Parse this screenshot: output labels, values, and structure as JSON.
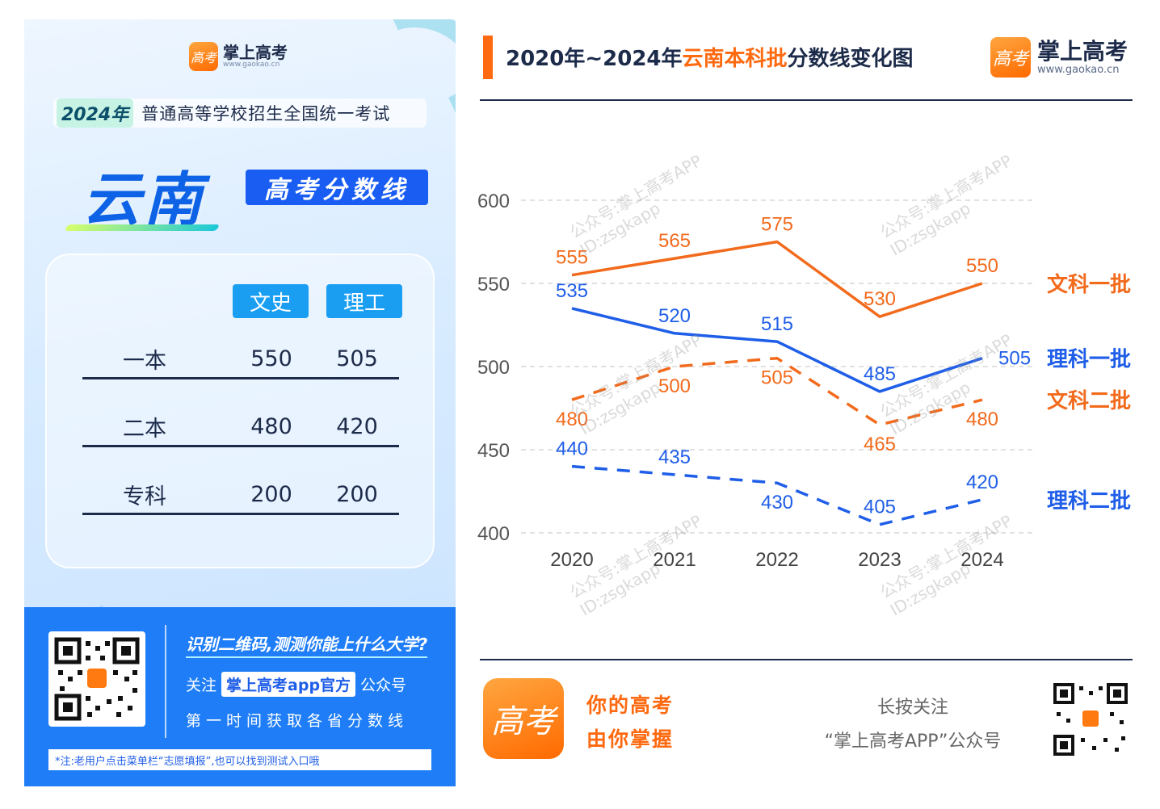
{
  "left": {
    "brand_name": "掌上高考",
    "brand_url": "www.gaokao.cn",
    "logo_char": "高考",
    "exam_year": "2024年",
    "exam_text": "普通高等学校招生全国统一考试",
    "province": "云南",
    "score_title": "高考分数线",
    "col_headers": [
      "文史",
      "理工"
    ],
    "rows": [
      {
        "label": "一本",
        "wenshi": "550",
        "ligong": "505"
      },
      {
        "label": "二本",
        "wenshi": "480",
        "ligong": "420"
      },
      {
        "label": "专科",
        "wenshi": "200",
        "ligong": "200"
      }
    ],
    "scan_text": "识别二维码,测测你能上什么大学?",
    "follow_prefix": "关注",
    "follow_account": "掌上高考app官方",
    "follow_suffix": "公众号",
    "first_time": "第一时间获取各省分数线",
    "note": "*注:老用户点击菜单栏“志愿填报”,也可以找到测试入口哦"
  },
  "header": {
    "title_pre": "2020年~2024年",
    "title_hl": "云南本科批",
    "title_post": "分数线变化图",
    "brand_name": "掌上高考",
    "brand_url": "www.gaokao.cn",
    "logo_char": "高考"
  },
  "watermark": {
    "line1": "公众号:掌上高考APP",
    "line2": "ID:zsgkapp"
  },
  "footer": {
    "logo_char": "高考",
    "slogan1": "你的高考",
    "slogan2": "由你掌握",
    "press1": "长按关注",
    "press2": "“掌上高考APP”公众号"
  },
  "colors": {
    "orange": "#f26b1d",
    "blue": "#1f5ee8",
    "accent": "#ff6a10"
  },
  "chart_data": {
    "type": "line",
    "x": [
      "2020",
      "2021",
      "2022",
      "2023",
      "2024"
    ],
    "ylim": [
      400,
      600
    ],
    "yticks": [
      400,
      450,
      500,
      550,
      600
    ],
    "grid": true,
    "series": [
      {
        "name": "文科一批",
        "values": [
          555,
          565,
          575,
          530,
          550
        ],
        "color": "#f26b1d",
        "dash": false,
        "label_pos": [
          "above",
          "above",
          "above",
          "above",
          "above"
        ]
      },
      {
        "name": "理科一批",
        "values": [
          535,
          520,
          515,
          485,
          505
        ],
        "color": "#1f5ee8",
        "dash": false,
        "label_pos": [
          "above",
          "above",
          "above",
          "above",
          "right"
        ]
      },
      {
        "name": "文科二批",
        "values": [
          480,
          500,
          505,
          465,
          480
        ],
        "color": "#f26b1d",
        "dash": true,
        "label_pos": [
          "below",
          "below",
          "below",
          "below",
          "below"
        ]
      },
      {
        "name": "理科二批",
        "values": [
          440,
          435,
          430,
          405,
          420
        ],
        "color": "#1f5ee8",
        "dash": true,
        "label_pos": [
          "above",
          "above",
          "below",
          "above",
          "above"
        ]
      }
    ]
  }
}
